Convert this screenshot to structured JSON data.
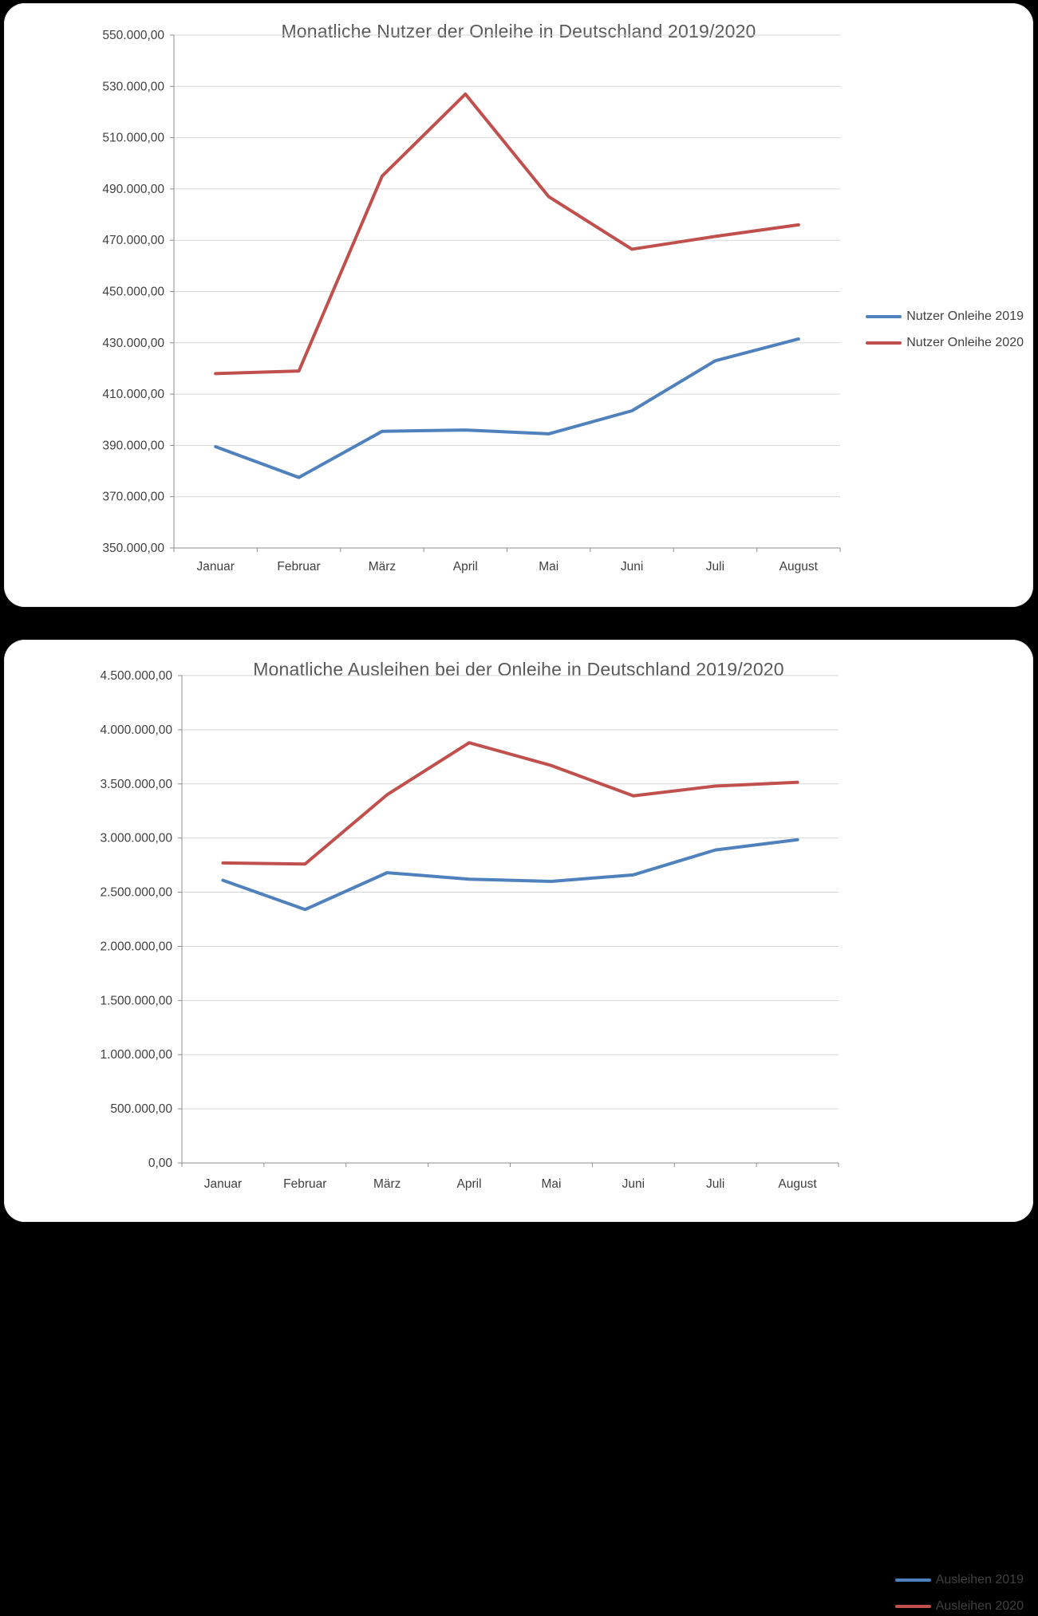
{
  "chart_data": [
    {
      "type": "line",
      "title": "Monatliche Nutzer der Onleihe in Deutschland 2019/2020",
      "categories": [
        "Januar",
        "Februar",
        "März",
        "April",
        "Mai",
        "Juni",
        "Juli",
        "August"
      ],
      "series": [
        {
          "name": "Nutzer Onleihe 2019",
          "color": "#4F81BD",
          "values": [
            389500,
            377500,
            395500,
            396000,
            394500,
            403500,
            423000,
            431500
          ]
        },
        {
          "name": "Nutzer Onleihe 2020",
          "color": "#C0504D",
          "values": [
            418000,
            419000,
            495000,
            527000,
            487000,
            466500,
            471500,
            476000
          ]
        }
      ],
      "ylim": [
        350000,
        550000
      ],
      "ystep": 20000,
      "y_tick_labels": [
        "350.000,00",
        "370.000,00",
        "390.000,00",
        "410.000,00",
        "430.000,00",
        "450.000,00",
        "470.000,00",
        "490.000,00",
        "510.000,00",
        "530.000,00",
        "550.000,00"
      ],
      "grid": true,
      "legend_position": "right"
    },
    {
      "type": "line",
      "title": "Monatliche Ausleihen bei der Onleihe in Deutschland 2019/2020",
      "categories": [
        "Januar",
        "Februar",
        "März",
        "April",
        "Mai",
        "Juni",
        "Juli",
        "August"
      ],
      "series": [
        {
          "name": "Ausleihen 2019",
          "color": "#4F81BD",
          "values": [
            2610000,
            2340000,
            2680000,
            2620000,
            2600000,
            2660000,
            2890000,
            2985000
          ]
        },
        {
          "name": "Ausleihen 2020",
          "color": "#C0504D",
          "values": [
            2770000,
            2760000,
            3400000,
            3880000,
            3670000,
            3390000,
            3480000,
            3515000
          ]
        }
      ],
      "ylim": [
        0,
        4500000
      ],
      "ystep": 500000,
      "y_tick_labels": [
        "0,00",
        "500.000,00",
        "1.000.000,00",
        "1.500.000,00",
        "2.000.000,00",
        "2.500.000,00",
        "3.000.000,00",
        "3.500.000,00",
        "4.000.000,00",
        "4.500.000,00"
      ],
      "grid": true,
      "legend_position": "right"
    }
  ],
  "colors": {
    "page_background": "#000000",
    "panel_background": "#FFFFFF",
    "gridline": "#D6D6D6",
    "axis_line": "#8C8C8C",
    "tick_text": "#404040",
    "title_text": "#595959"
  }
}
